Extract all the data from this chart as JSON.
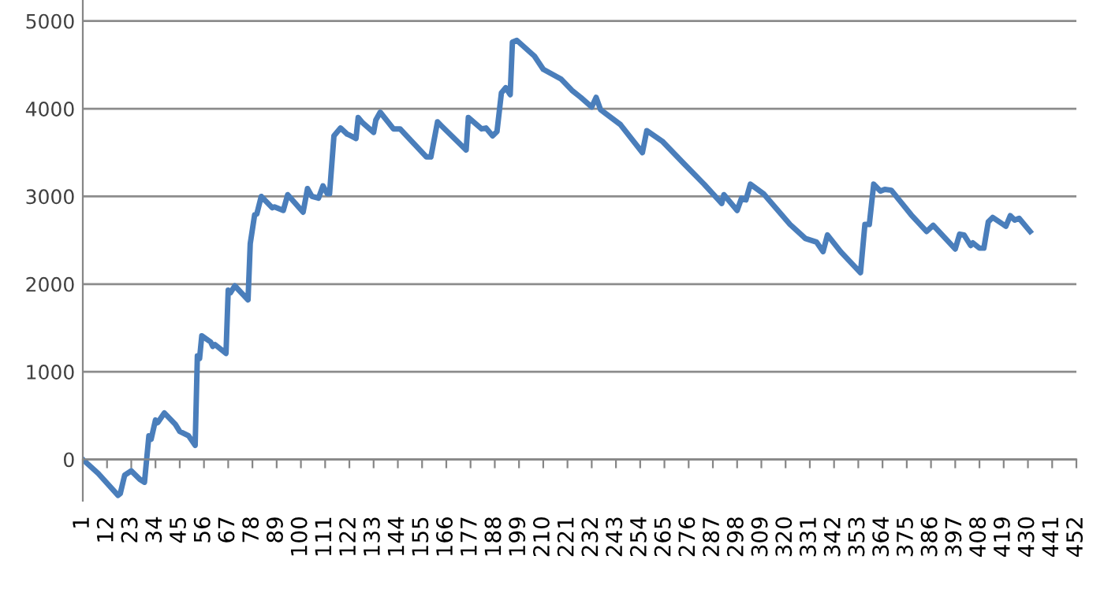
{
  "chart_data": {
    "type": "line",
    "x": [
      1,
      8,
      17,
      18,
      20,
      23,
      27,
      29,
      31,
      32,
      34,
      35,
      38,
      43,
      45,
      49,
      52,
      53,
      54,
      55,
      59,
      60,
      61,
      66,
      67,
      68,
      70,
      76,
      77,
      79,
      80,
      82,
      87,
      88,
      92,
      94,
      101,
      103,
      105,
      108,
      110,
      112,
      113,
      115,
      118,
      121,
      122,
      125,
      126,
      128,
      133,
      134,
      136,
      142,
      145,
      157,
      159,
      162,
      164,
      175,
      176,
      182,
      184,
      187,
      189,
      191,
      193,
      195,
      196,
      198,
      206,
      210,
      218,
      223,
      227,
      232,
      234,
      236,
      245,
      255,
      257,
      264,
      274,
      283,
      291,
      292,
      298,
      300,
      302,
      304,
      310,
      322,
      329,
      334,
      337,
      339,
      345,
      354,
      356,
      358,
      360,
      363,
      365,
      368,
      377,
      384,
      387,
      397,
      399,
      401,
      404,
      405,
      408,
      410,
      412,
      414,
      420,
      422,
      424,
      426,
      431
    ],
    "series": [
      {
        "color": "#4a7ebb",
        "values": [
          0,
          -160,
          -410,
          -390,
          -180,
          -130,
          -230,
          -260,
          270,
          230,
          450,
          420,
          530,
          400,
          320,
          270,
          160,
          1180,
          1150,
          1410,
          1340,
          1290,
          1310,
          1210,
          1930,
          1900,
          1980,
          1820,
          2460,
          2790,
          2800,
          3000,
          2870,
          2880,
          2840,
          3020,
          2820,
          3090,
          3000,
          2980,
          3120,
          3030,
          3030,
          3690,
          3780,
          3710,
          3700,
          3660,
          3900,
          3840,
          3730,
          3870,
          3960,
          3770,
          3770,
          3450,
          3450,
          3850,
          3800,
          3530,
          3900,
          3770,
          3780,
          3690,
          3740,
          4180,
          4240,
          4160,
          4760,
          4780,
          4600,
          4450,
          4340,
          4210,
          4130,
          4020,
          4130,
          3990,
          3820,
          3500,
          3750,
          3630,
          3370,
          3140,
          2920,
          3020,
          2840,
          2980,
          2960,
          3140,
          3030,
          2680,
          2520,
          2480,
          2370,
          2560,
          2370,
          2130,
          2680,
          2680,
          3140,
          3060,
          3080,
          3070,
          2790,
          2600,
          2670,
          2400,
          2570,
          2560,
          2440,
          2470,
          2410,
          2410,
          2710,
          2760,
          2660,
          2780,
          2730,
          2750,
          2600
        ]
      }
    ],
    "xlim": [
      1,
      452
    ],
    "xticks": [
      1,
      12,
      23,
      34,
      45,
      56,
      67,
      78,
      89,
      100,
      111,
      122,
      133,
      144,
      155,
      166,
      177,
      188,
      199,
      210,
      221,
      232,
      243,
      254,
      265,
      276,
      287,
      298,
      309,
      320,
      331,
      342,
      353,
      364,
      375,
      386,
      397,
      408,
      419,
      430,
      441,
      452
    ],
    "ylim": [
      -470,
      5240
    ],
    "yticks": [
      0,
      1000,
      2000,
      3000,
      4000,
      5000
    ],
    "grid": "y",
    "legend": false,
    "marker": "none",
    "line_style": "solid"
  }
}
